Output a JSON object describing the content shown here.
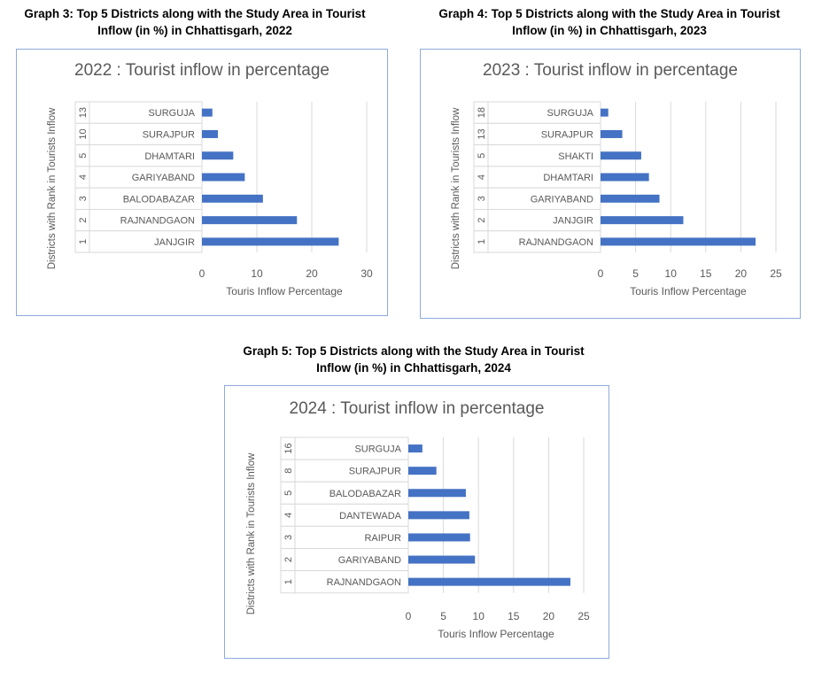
{
  "chart_data": [
    {
      "type": "bar",
      "orientation": "horizontal",
      "figure_title": "Graph 3: Top 5 Districts along with the Study Area in Tourist Inflow (in %) in Chhattisgarh, 2022",
      "title": "2022 : Tourist inflow in percentage",
      "xlabel": "Touris Inflow Percentage",
      "ylabel": "Districts with Rank in Tourists Inflow",
      "ranks": [
        "13",
        "10",
        "5",
        "4",
        "3",
        "2",
        "1"
      ],
      "categories": [
        "SURGUJA",
        "SURAJPUR",
        "DHAMTARI",
        "GARIYABAND",
        "BALODABAZAR",
        "RAJNANDGAON",
        "JANJGIR"
      ],
      "values": [
        1.9,
        2.9,
        5.7,
        7.8,
        11.1,
        17.3,
        24.9
      ],
      "xlim": [
        0,
        30
      ],
      "xticks": [
        "0",
        "10",
        "20",
        "30"
      ],
      "bar_color": "#4472c4",
      "grid": true
    },
    {
      "type": "bar",
      "orientation": "horizontal",
      "figure_title": "Graph 4: Top 5 Districts along with the Study Area in Tourist Inflow (in %) in Chhattisgarh, 2023",
      "title": "2023 : Tourist inflow in percentage",
      "xlabel": "Touris Inflow Percentage",
      "ylabel": "Districts with Rank in Tourists Inflow",
      "ranks": [
        "18",
        "13",
        "5",
        "4",
        "3",
        "2",
        "1"
      ],
      "categories": [
        "SURGUJA",
        "SURAJPUR",
        "SHAKTI",
        "DHAMTARI",
        "GARIYABAND",
        "JANJGIR",
        "RAJNANDGAON"
      ],
      "values": [
        1.1,
        3.1,
        5.8,
        6.9,
        8.4,
        11.8,
        22.1
      ],
      "xlim": [
        0,
        25
      ],
      "xticks": [
        "0",
        "5",
        "10",
        "15",
        "20",
        "25"
      ],
      "bar_color": "#4472c4",
      "grid": true
    },
    {
      "type": "bar",
      "orientation": "horizontal",
      "figure_title": "Graph 5: Top 5 Districts along with the Study Area in Tourist Inflow (in %) in Chhattisgarh, 2024",
      "title": "2024 : Tourist inflow in percentage",
      "xlabel": "Touris Inflow Percentage",
      "ylabel": "Districts with Rank in Tourists Inflow",
      "ranks": [
        "16",
        "8",
        "5",
        "4",
        "3",
        "2",
        "1"
      ],
      "categories": [
        "SURGUJA",
        "SURAJPUR",
        "BALODABAZAR",
        "DANTEWADA",
        "RAIPUR",
        "GARIYABAND",
        "RAJNANDGAON"
      ],
      "values": [
        2.0,
        4.0,
        8.2,
        8.7,
        8.8,
        9.5,
        23.1
      ],
      "xlim": [
        0,
        25
      ],
      "xticks": [
        "0",
        "5",
        "10",
        "15",
        "20",
        "25"
      ],
      "bar_color": "#4472c4",
      "grid": true
    }
  ]
}
